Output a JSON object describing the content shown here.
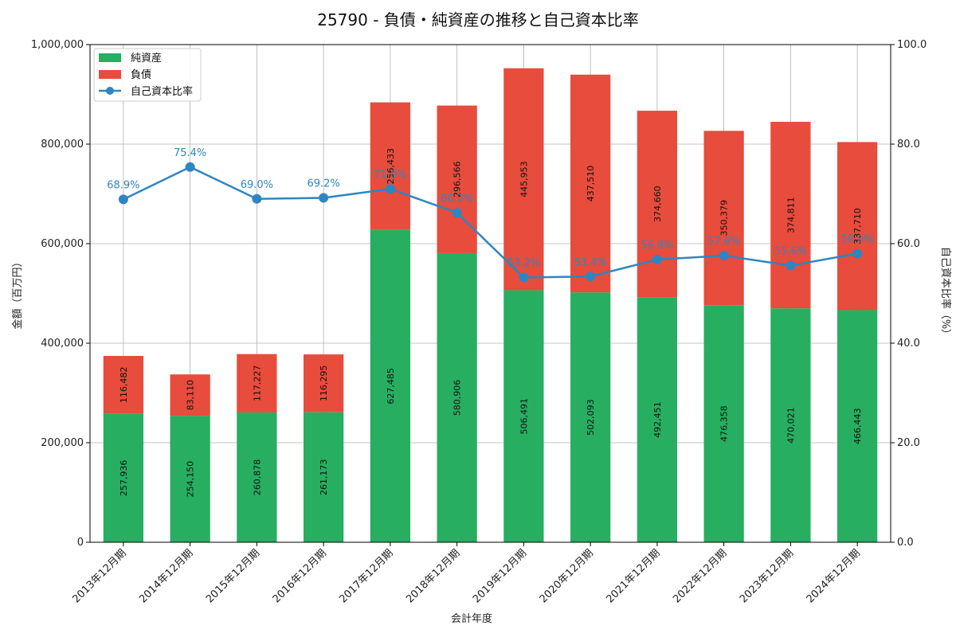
{
  "chart_data": {
    "type": "bar",
    "title": "25790 - 負債・純資産の推移と自己資本比率",
    "xlabel": "会計年度",
    "ylabel_left": "金額（百万円）",
    "ylabel_right": "自己資本比率（%）",
    "categories": [
      "2013年12月期",
      "2014年12月期",
      "2015年12月期",
      "2016年12月期",
      "2017年12月期",
      "2018年12月期",
      "2019年12月期",
      "2020年12月期",
      "2021年12月期",
      "2022年12月期",
      "2023年12月期",
      "2024年12月期"
    ],
    "ylim_left": [
      0,
      1000000
    ],
    "ylim_right": [
      0,
      100
    ],
    "yticks_left": [
      "0",
      "200,000",
      "400,000",
      "600,000",
      "800,000",
      "1,000,000"
    ],
    "yticks_right": [
      "0.0",
      "20.0",
      "40.0",
      "60.0",
      "80.0",
      "100.0"
    ],
    "grid": true,
    "legend_position": "top-left",
    "series": [
      {
        "name": "純資産",
        "kind": "bar",
        "color": "#27ae60",
        "values": [
          257936,
          254150,
          260878,
          261173,
          627485,
          580906,
          506491,
          502093,
          492451,
          476358,
          470021,
          466443
        ],
        "labels": [
          "257,936",
          "254,150",
          "260,878",
          "261,173",
          "627,485",
          "580,906",
          "506,491",
          "502,093",
          "492,451",
          "476,358",
          "470,021",
          "466,443"
        ]
      },
      {
        "name": "負債",
        "kind": "bar",
        "color": "#e74c3c",
        "values": [
          116482,
          83110,
          117227,
          116295,
          256433,
          296566,
          445953,
          437510,
          374660,
          350379,
          374811,
          337710
        ],
        "labels": [
          "116,482",
          "83,110",
          "117,227",
          "116,295",
          "256,433",
          "296,566",
          "445,953",
          "437,510",
          "374,660",
          "350,379",
          "374,811",
          "337,710"
        ]
      },
      {
        "name": "自己資本比率",
        "kind": "line",
        "color": "#2e86c1",
        "values": [
          68.9,
          75.4,
          69.0,
          69.2,
          71.0,
          66.2,
          53.2,
          53.4,
          56.8,
          57.6,
          55.6,
          58.0
        ],
        "labels": [
          "68.9%",
          "75.4%",
          "69.0%",
          "69.2%",
          "71.0%",
          "66.2%",
          "53.2%",
          "53.4%",
          "56.8%",
          "57.6%",
          "55.6%",
          "58.0%"
        ]
      }
    ]
  }
}
